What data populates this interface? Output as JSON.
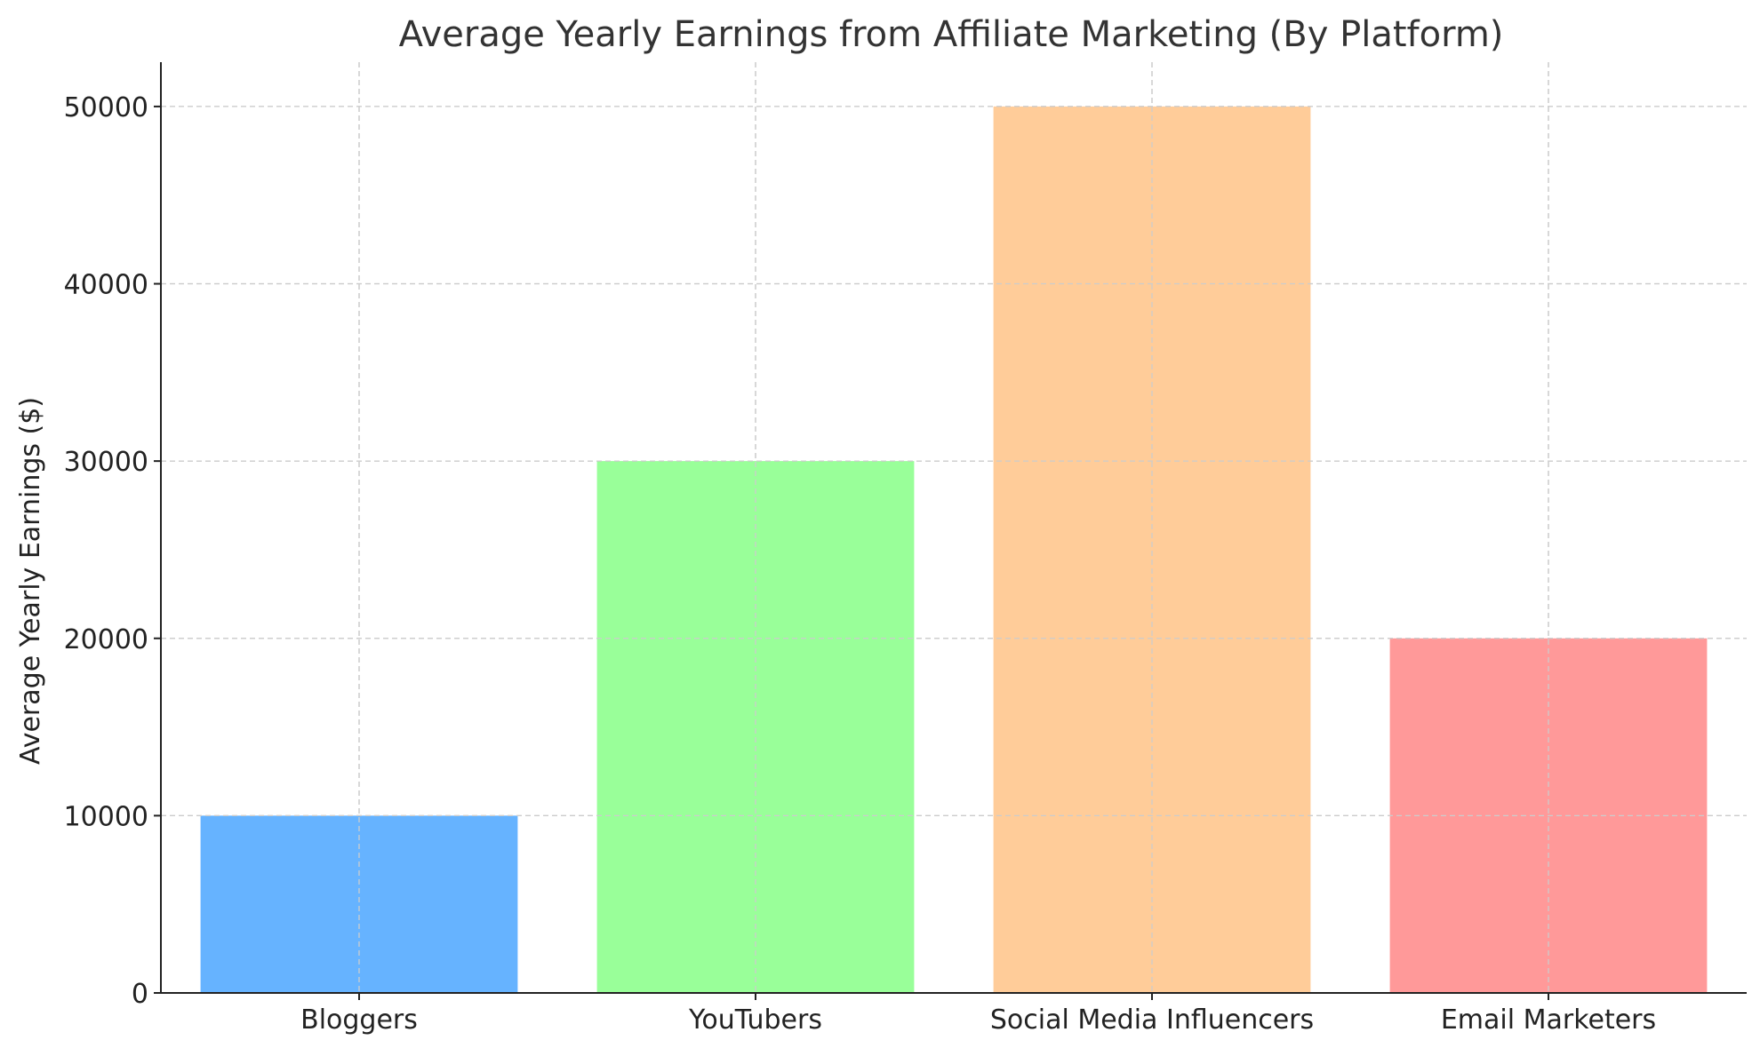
{
  "chart_data": {
    "type": "bar",
    "title": "Average Yearly Earnings from Affiliate Marketing (By Platform)",
    "xlabel": "",
    "ylabel": "Average Yearly Earnings ($)",
    "categories": [
      "Bloggers",
      "YouTubers",
      "Social Media Influencers",
      "Email Marketers"
    ],
    "values": [
      10000,
      30000,
      50000,
      20000
    ],
    "colors": [
      "#66b3ff",
      "#99ff99",
      "#ffcc99",
      "#ff9999"
    ],
    "ylim": [
      0,
      52500
    ],
    "yticks": [
      0,
      10000,
      20000,
      30000,
      40000,
      50000
    ],
    "grid": true,
    "legend": "none"
  }
}
